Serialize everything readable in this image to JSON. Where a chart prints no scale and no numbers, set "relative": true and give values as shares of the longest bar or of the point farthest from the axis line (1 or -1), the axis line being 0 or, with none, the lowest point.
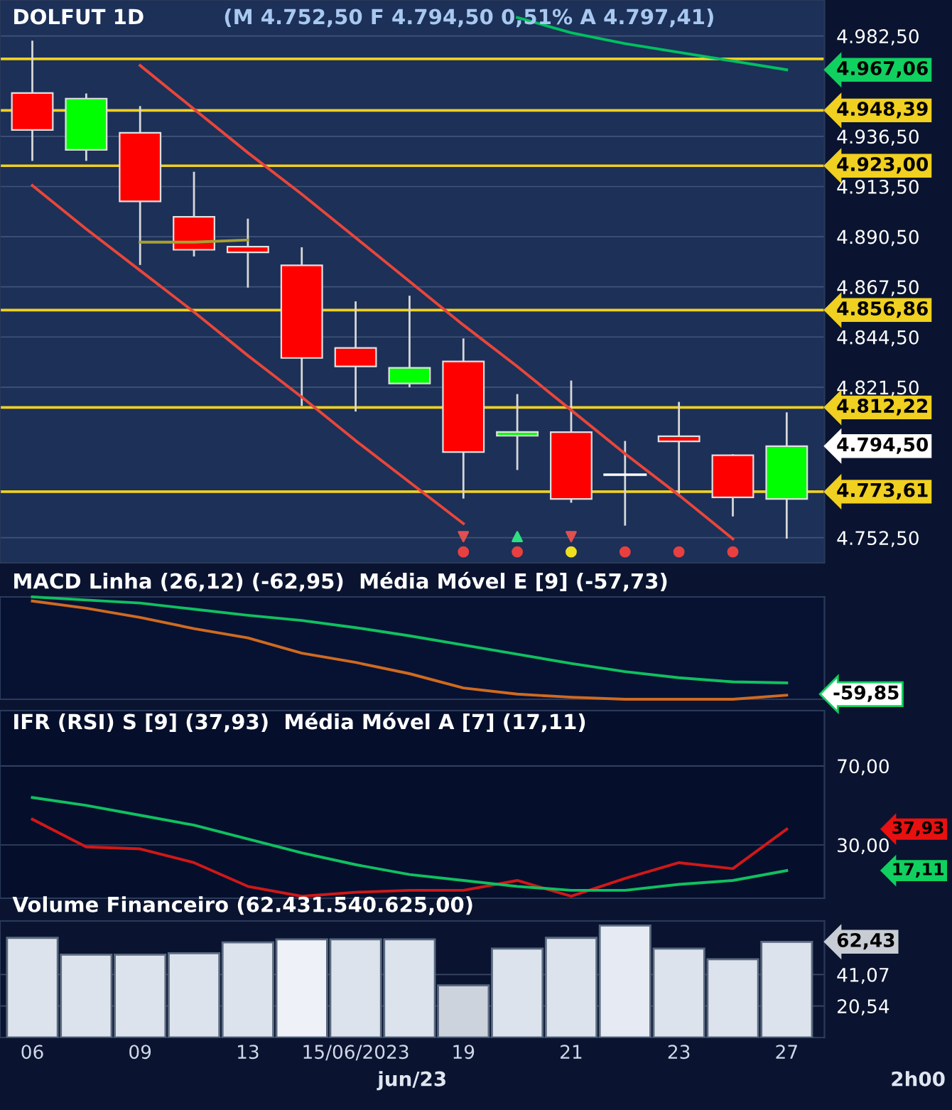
{
  "chart_data": [
    {
      "type": "candlestick",
      "title": "DOLFUT 1D",
      "subtitle": "(M 4.752,50 F 4.794,50 0,51% A 4.797,41)",
      "categories": [
        null,
        null,
        null,
        null,
        null,
        null,
        null,
        null,
        null,
        null,
        null,
        null,
        null,
        null,
        null
      ],
      "ohlc": [
        [
          4956.4,
          4979.9,
          4925.7,
          4939.4
        ],
        [
          4930.3,
          4955.7,
          4925.7,
          4953.8
        ],
        [
          4938.1,
          4949.9,
          4878.0,
          4906.7
        ],
        [
          4899.6,
          4919.8,
          4881.9,
          4884.5
        ],
        [
          4885.9,
          4898.3,
          4867.6,
          4883.3
        ],
        [
          4877.4,
          4885.2,
          4813.4,
          4834.9
        ],
        [
          4839.5,
          4860.4,
          4810.8,
          4831.0
        ],
        [
          4823.2,
          4863.0,
          4821.9,
          4830.4
        ],
        [
          4833.3,
          4843.4,
          4770.9,
          4791.8
        ],
        [
          4799.3,
          4817.9,
          4784.0,
          4801.0
        ],
        [
          4800.9,
          4824.1,
          4769.0,
          4770.3
        ],
        [
          4781.4,
          4796.4,
          4758.5,
          4781.4
        ],
        [
          4799.0,
          4814.3,
          4771.9,
          4796.7
        ],
        [
          4790.3,
          4790.3,
          4762.7,
          4771.0
        ],
        [
          4770.3,
          4809.5,
          4752.5,
          4794.5
        ]
      ],
      "colors": [
        "#ff0000",
        "#00ff00",
        "#ff0000",
        "#ff0000",
        "#ff0000",
        "#ff0000",
        "#ff0000",
        "#00ff00",
        "#ff0000",
        "#00ff00",
        "#ff0000",
        "#ffffff",
        "#ff0000",
        "#ff0000",
        "#00ff00"
      ],
      "series": [
        {
          "type": "line",
          "color": "#00c060",
          "values": [
            null,
            null,
            null,
            null,
            null,
            null,
            null,
            null,
            null,
            4991,
            4984,
            4979,
            4975,
            4971,
            4967
          ]
        },
        {
          "type": "line",
          "color": "#e8463a",
          "values": [
            null,
            null,
            4969,
            4949,
            4929,
            4910,
            4890,
            4870,
            4850,
            4831,
            4811,
            4791,
            4772,
            4752,
            null
          ]
        },
        {
          "type": "line",
          "color": "#e8463a",
          "values": [
            4914,
            4894,
            4875,
            4856,
            4836,
            4817,
            4797,
            4778,
            4759,
            null,
            null,
            null,
            null,
            null,
            null
          ]
        },
        {
          "type": "line",
          "color": "#a8a030",
          "values": [
            null,
            null,
            4888,
            4888,
            4889,
            null,
            null,
            null,
            null,
            null,
            null,
            null,
            null,
            null,
            null
          ]
        },
        {
          "type": "scatter",
          "marker": "circle",
          "values": [
            null,
            null,
            null,
            null,
            null,
            null,
            null,
            null,
            4746,
            4746,
            4746,
            4746,
            4746,
            4746,
            null
          ],
          "colors": [
            null,
            null,
            null,
            null,
            null,
            null,
            null,
            null,
            "#e84040",
            "#e84040",
            "#f0e020",
            "#e84040",
            "#e84040",
            "#e84040",
            null
          ]
        },
        {
          "type": "scatter",
          "marker": "triangle_down",
          "values": [
            null,
            null,
            null,
            null,
            null,
            null,
            null,
            null,
            4753,
            null,
            4753,
            null,
            null,
            null,
            null
          ],
          "color": "#e05050"
        },
        {
          "type": "scatter",
          "marker": "triangle",
          "values": [
            null,
            null,
            null,
            null,
            null,
            null,
            null,
            null,
            null,
            4753,
            null,
            null,
            null,
            null,
            null
          ],
          "color": "#30e080"
        }
      ],
      "ref_lines": [
        {
          "axis": "y",
          "value": 4972,
          "label": null,
          "color": "#f0d020",
          "line_style": "solid"
        },
        {
          "axis": "y",
          "value": 4948.39,
          "label": "4.948,39",
          "color": "#f0d020",
          "line_style": "solid"
        },
        {
          "axis": "y",
          "value": 4923.0,
          "label": "4.923,00",
          "color": "#f0d020",
          "line_style": "solid"
        },
        {
          "axis": "y",
          "value": 4856.86,
          "label": "4.856,86",
          "color": "#f0d020",
          "line_style": "solid"
        },
        {
          "axis": "y",
          "value": 4812.22,
          "label": "4.812,22",
          "color": "#f0d020",
          "line_style": "solid"
        },
        {
          "axis": "y",
          "value": 4773.61,
          "label": "4.773,61",
          "color": "#f0d020",
          "line_style": "solid"
        }
      ],
      "annotations": [
        "4.967,06",
        "4.794,50"
      ],
      "ylim": [
        4741,
        4999
      ],
      "yticks": [
        {
          "value": 4982.5,
          "label": "4.982,50"
        },
        {
          "value": 4936.5,
          "label": "4.936,50"
        },
        {
          "value": 4913.5,
          "label": "4.913,50"
        },
        {
          "value": 4890.5,
          "label": "4.890,50"
        },
        {
          "value": 4867.5,
          "label": "4.867,50"
        },
        {
          "value": 4844.5,
          "label": "4.844,50"
        },
        {
          "value": 4821.5,
          "label": "4.821,50"
        },
        {
          "value": 4752.5,
          "label": "4.752,50"
        }
      ],
      "grid": "y",
      "tick_labels": "y"
    },
    {
      "type": "line",
      "title": "MACD Linha (26,12) (-62,95)  Média Móvel E [9] (-57,73)",
      "relative": true,
      "categories": [
        null,
        null,
        null,
        null,
        null,
        null,
        null,
        null,
        null,
        null,
        null,
        null,
        null,
        null,
        null
      ],
      "series": [
        {
          "color": "#d06a20",
          "values": [
            0.96,
            0.89,
            0.8,
            0.69,
            0.6,
            0.45,
            0.36,
            0.25,
            0.11,
            0.05,
            0.02,
            0,
            0,
            0,
            0.04
          ]
        },
        {
          "color": "#10c060",
          "values": [
            1.0,
            0.97,
            0.94,
            0.88,
            0.82,
            0.77,
            0.7,
            0.62,
            0.53,
            0.44,
            0.35,
            0.27,
            0.21,
            0.17,
            0.16
          ]
        }
      ],
      "annotations": [
        "-59,85"
      ],
      "tick_labels": false
    },
    {
      "type": "line",
      "title": "IFR (RSI) S [9] (37,93)  Média Móvel A [7] (17,11)",
      "categories": [
        null,
        null,
        null,
        null,
        null,
        null,
        null,
        null,
        null,
        null,
        null,
        null,
        null,
        null,
        null
      ],
      "series": [
        {
          "color": "#d01818",
          "values": [
            43,
            29,
            28,
            21,
            9,
            4,
            6,
            7,
            7,
            12,
            4,
            13,
            21,
            18,
            38
          ]
        },
        {
          "color": "#10c060",
          "values": [
            54,
            50,
            45,
            40,
            33,
            26,
            20,
            15,
            12,
            9,
            7,
            7,
            10,
            12,
            17
          ]
        }
      ],
      "annotations": [
        "37,93",
        "17,11"
      ],
      "ylim": [
        3,
        98
      ],
      "yticks": [
        {
          "value": 70,
          "label": "70,00"
        },
        {
          "value": 30,
          "label": "30,00"
        }
      ],
      "grid": "y",
      "tick_labels": "y"
    },
    {
      "type": "bar",
      "title": "Volume Financeiro (62.431.540.625,00)",
      "categories": [
        "06",
        null,
        "09",
        null,
        "13",
        null,
        "15/06/2023",
        null,
        "19",
        null,
        "21",
        null,
        "23",
        null,
        "27"
      ],
      "values": [
        65,
        54,
        54,
        55,
        62,
        64,
        64,
        64,
        34,
        58,
        65,
        73,
        58,
        51,
        62.43
      ],
      "colors": [
        "#dde3ec",
        "#dde3ec",
        "#dde3ec",
        "#dde3ec",
        "#dde3ec",
        "#eef2f8",
        "#dde3ec",
        "#dde3ec",
        "#cdd3dc",
        "#dde3ec",
        "#dde3ec",
        "#e6eaf2",
        "#dde3ec",
        "#dde3ec",
        "#dde3ec"
      ],
      "annotations": [
        "62,43",
        "jun/23",
        "2h00"
      ],
      "ylim": [
        0,
        76
      ],
      "yticks": [
        {
          "value": 20.54,
          "label": "20,54"
        },
        {
          "value": 41.07,
          "label": "41,07"
        }
      ],
      "grid": "y"
    }
  ]
}
